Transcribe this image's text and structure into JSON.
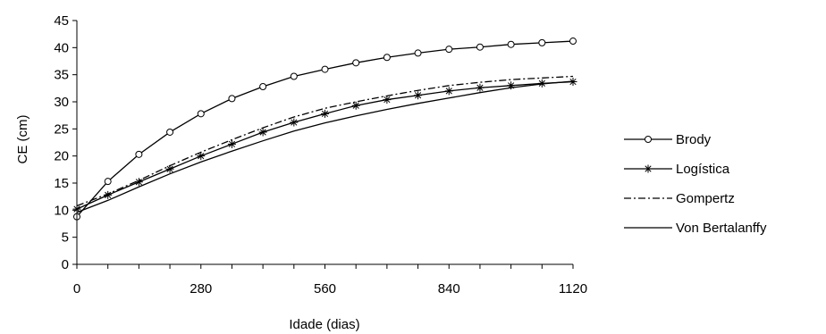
{
  "chart_data": {
    "type": "line",
    "title": "",
    "xlabel": "Idade (dias)",
    "ylabel": "CE (cm)",
    "xlim": [
      0,
      1120
    ],
    "ylim": [
      0,
      45
    ],
    "x_ticks": [
      "0",
      "280",
      "560",
      "840",
      "1120"
    ],
    "y_ticks": [
      "0",
      "5",
      "10",
      "15",
      "20",
      "25",
      "30",
      "35",
      "40",
      "45"
    ],
    "grid": false,
    "legend_position": "right",
    "x": [
      0,
      70,
      140,
      210,
      280,
      350,
      420,
      490,
      560,
      630,
      700,
      770,
      840,
      910,
      980,
      1050,
      1120
    ],
    "series": [
      {
        "name": "Brody",
        "marker": "circle",
        "dash": "solid",
        "values": [
          8.8,
          15.3,
          20.3,
          24.4,
          27.8,
          30.6,
          32.8,
          34.7,
          36.0,
          37.2,
          38.2,
          39.0,
          39.7,
          40.1,
          40.6,
          40.9,
          41.2
        ]
      },
      {
        "name": "Logística",
        "marker": "star",
        "dash": "solid",
        "values": [
          10.2,
          12.8,
          15.2,
          17.6,
          20.0,
          22.2,
          24.4,
          26.2,
          27.8,
          29.3,
          30.4,
          31.2,
          32.0,
          32.6,
          33.0,
          33.4,
          33.7
        ]
      },
      {
        "name": "Gompertz",
        "marker": "none",
        "dash": "dashdot",
        "values": [
          10.8,
          13.0,
          15.5,
          18.2,
          20.7,
          23.0,
          25.2,
          27.2,
          28.8,
          30.0,
          31.1,
          32.1,
          33.0,
          33.6,
          34.1,
          34.4,
          34.7
        ]
      },
      {
        "name": "Von Bertalanffy",
        "marker": "none",
        "dash": "solid",
        "values": [
          9.6,
          11.8,
          14.3,
          16.7,
          18.9,
          20.9,
          22.8,
          24.6,
          26.1,
          27.4,
          28.6,
          29.7,
          30.7,
          31.7,
          32.6,
          33.3,
          33.8
        ]
      }
    ]
  }
}
